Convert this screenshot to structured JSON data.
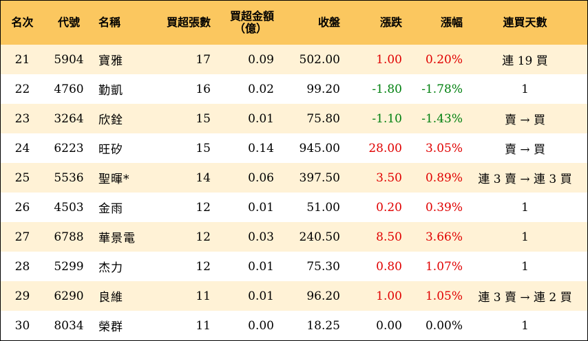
{
  "header": {
    "rank": "名次",
    "code": "代號",
    "name": "名稱",
    "buy_lots": "買超張數",
    "buy_amount_line1": "買超金額",
    "buy_amount_line2": "（億）",
    "close": "收盤",
    "change": "漲跌",
    "change_pct": "漲幅",
    "streak": "連買天數"
  },
  "colors": {
    "header_bg": "#fbc75f",
    "alt_row_bg": "#fff2d6",
    "up": "#e00000",
    "down": "#00800f"
  },
  "rows": [
    {
      "rank": "21",
      "code": "5904",
      "name": "寶雅",
      "buy_lots": "17",
      "buy_amount": "0.09",
      "close": "502.00",
      "change": "1.00",
      "change_pct": "0.20%",
      "direction": "up",
      "streak": "連 19 買"
    },
    {
      "rank": "22",
      "code": "4760",
      "name": "勤凱",
      "buy_lots": "16",
      "buy_amount": "0.02",
      "close": "99.20",
      "change": "-1.80",
      "change_pct": "-1.78%",
      "direction": "down",
      "streak": "1"
    },
    {
      "rank": "23",
      "code": "3264",
      "name": "欣銓",
      "buy_lots": "15",
      "buy_amount": "0.01",
      "close": "75.80",
      "change": "-1.10",
      "change_pct": "-1.43%",
      "direction": "down",
      "streak": "賣 → 買"
    },
    {
      "rank": "24",
      "code": "6223",
      "name": "旺矽",
      "buy_lots": "15",
      "buy_amount": "0.14",
      "close": "945.00",
      "change": "28.00",
      "change_pct": "3.05%",
      "direction": "up",
      "streak": "賣 → 買"
    },
    {
      "rank": "25",
      "code": "5536",
      "name": "聖暉*",
      "buy_lots": "14",
      "buy_amount": "0.06",
      "close": "397.50",
      "change": "3.50",
      "change_pct": "0.89%",
      "direction": "up",
      "streak": "連 3 賣 → 連 3 買"
    },
    {
      "rank": "26",
      "code": "4503",
      "name": "金雨",
      "buy_lots": "12",
      "buy_amount": "0.01",
      "close": "51.00",
      "change": "0.20",
      "change_pct": "0.39%",
      "direction": "up",
      "streak": "1"
    },
    {
      "rank": "27",
      "code": "6788",
      "name": "華景電",
      "buy_lots": "12",
      "buy_amount": "0.03",
      "close": "240.50",
      "change": "8.50",
      "change_pct": "3.66%",
      "direction": "up",
      "streak": "1"
    },
    {
      "rank": "28",
      "code": "5299",
      "name": "杰力",
      "buy_lots": "12",
      "buy_amount": "0.01",
      "close": "75.30",
      "change": "0.80",
      "change_pct": "1.07%",
      "direction": "up",
      "streak": "1"
    },
    {
      "rank": "29",
      "code": "6290",
      "name": "良維",
      "buy_lots": "11",
      "buy_amount": "0.01",
      "close": "96.20",
      "change": "1.00",
      "change_pct": "1.05%",
      "direction": "up",
      "streak": "連 3 賣 → 連 2 買"
    },
    {
      "rank": "30",
      "code": "8034",
      "name": "榮群",
      "buy_lots": "11",
      "buy_amount": "0.00",
      "close": "18.25",
      "change": "0.00",
      "change_pct": "0.00%",
      "direction": "flat",
      "streak": "1"
    }
  ]
}
